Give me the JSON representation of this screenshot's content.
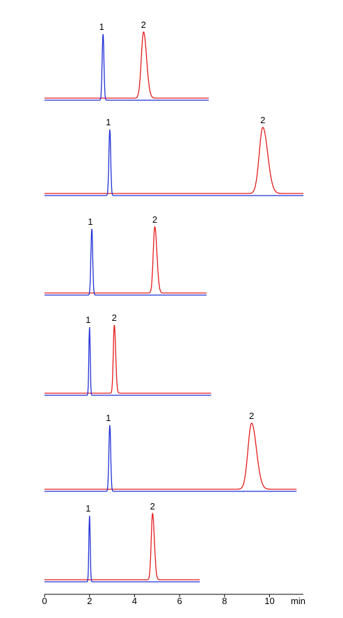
{
  "chart_data": {
    "type": "line",
    "xlabel": "min",
    "xlim": [
      0,
      11.5
    ],
    "x_ticks": [
      {
        "value": 0,
        "label": "0"
      },
      {
        "value": 2,
        "label": "2"
      },
      {
        "value": 4,
        "label": "4"
      },
      {
        "value": 6,
        "label": "6"
      },
      {
        "value": 8,
        "label": "8"
      },
      {
        "value": 10,
        "label": "10"
      }
    ],
    "series_colors": {
      "blue": "#1f2fd6",
      "red": "#e51a1a"
    },
    "grid": false,
    "panels": [
      {
        "x_end": 7.3,
        "blue": {
          "peak_x": 2.6,
          "peak_height": 1.0,
          "sigma": 0.04,
          "label": "1"
        },
        "red": {
          "peak_x": 4.4,
          "peak_height": 1.0,
          "sigma": 0.1,
          "label": "2"
        }
      },
      {
        "x_end": 11.5,
        "blue": {
          "peak_x": 2.9,
          "peak_height": 1.0,
          "sigma": 0.04,
          "label": "1"
        },
        "red": {
          "peak_x": 9.7,
          "peak_height": 1.0,
          "sigma": 0.16,
          "label": "2"
        }
      },
      {
        "x_end": 7.2,
        "blue": {
          "peak_x": 2.1,
          "peak_height": 1.0,
          "sigma": 0.04,
          "label": "1"
        },
        "red": {
          "peak_x": 4.9,
          "peak_height": 1.0,
          "sigma": 0.07,
          "label": "2"
        }
      },
      {
        "x_end": 7.4,
        "blue": {
          "peak_x": 2.0,
          "peak_height": 1.0,
          "sigma": 0.03,
          "label": "1"
        },
        "red": {
          "peak_x": 3.1,
          "peak_height": 1.0,
          "sigma": 0.045,
          "label": "2"
        }
      },
      {
        "x_end": 11.2,
        "blue": {
          "peak_x": 2.9,
          "peak_height": 1.0,
          "sigma": 0.04,
          "label": "1"
        },
        "red": {
          "peak_x": 9.2,
          "peak_height": 1.0,
          "sigma": 0.16,
          "label": "2"
        }
      },
      {
        "x_end": 6.9,
        "blue": {
          "peak_x": 2.0,
          "peak_height": 1.0,
          "sigma": 0.03,
          "label": "1"
        },
        "red": {
          "peak_x": 4.8,
          "peak_height": 1.0,
          "sigma": 0.06,
          "label": "2"
        }
      }
    ]
  }
}
